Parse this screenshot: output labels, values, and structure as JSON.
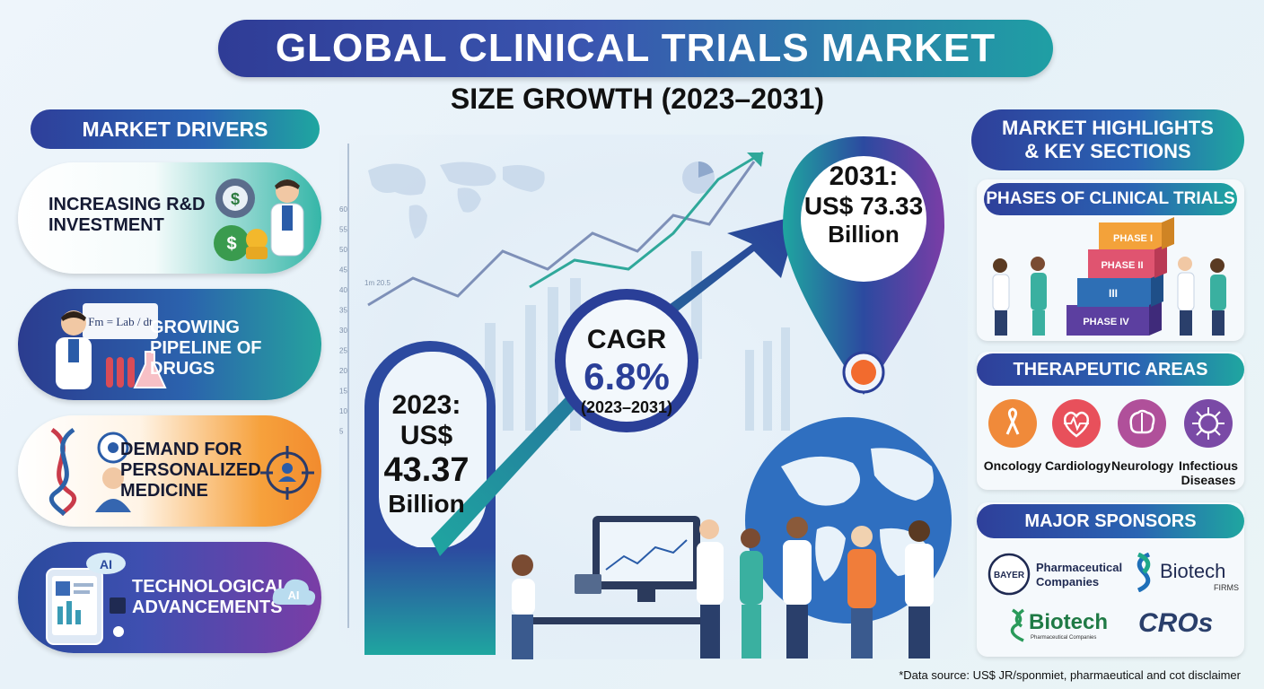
{
  "header": {
    "title": "GLOBAL CLINICAL TRIALS MARKET",
    "subtitle": "SIZE GROWTH (2023–2031)"
  },
  "drivers": {
    "heading": "MARKET DRIVERS",
    "items": [
      {
        "label_line1": "INCREASING R&D",
        "label_line2": "INVESTMENT"
      },
      {
        "label_line1": "GROWING",
        "label_line2": "PIPELINE OF DRUGS"
      },
      {
        "label_line1": "DEMAND FOR",
        "label_line2": "PERSONALIZED",
        "label_line3": "MEDICINE"
      },
      {
        "label_line1": "TECHNOLOGICAL",
        "label_line2": "ADVANCEMENTS"
      }
    ],
    "ai_badge": "AI",
    "formula_text": "Fm = Lab / dt"
  },
  "center": {
    "start": {
      "line1": "2023:",
      "line2": "US$",
      "line3": "43.37",
      "line4": "Billion"
    },
    "cagr": {
      "label": "CAGR",
      "value": "6.8%",
      "period": "(2023–2031)"
    },
    "end": {
      "line1": "2031:",
      "line2": "US$ 73.33",
      "line3": "Billion"
    },
    "axis_ticks": [
      "60",
      "55",
      "50",
      "45",
      "40",
      "35",
      "30",
      "25",
      "20",
      "15",
      "10",
      "5"
    ],
    "small_note": "1m 20.5"
  },
  "highlights": {
    "heading_line1": "MARKET HIGHLIGHTS",
    "heading_line2": "& KEY SECTIONS",
    "phases": {
      "heading": "PHASES OF CLINICAL TRIALS",
      "steps": [
        "PHASE I",
        "PHASE II",
        "III",
        "PHASE IV"
      ]
    },
    "therapeutic": {
      "heading": "THERAPEUTIC AREAS",
      "areas": [
        {
          "label": "Oncology",
          "color": "#f08a3a"
        },
        {
          "label": "Cardiology",
          "color": "#e8505b"
        },
        {
          "label": "Neurology",
          "color": "#b0509a"
        },
        {
          "label": "Infectious\nDiseases",
          "color": "#7a4aa6"
        }
      ],
      "area_line2": "Diseases",
      "area_line1": "Infectious"
    },
    "sponsors": {
      "heading": "MAJOR SPONSORS",
      "bayer": "BAYER",
      "pharma_line1": "Pharmaceutical",
      "pharma_line2": "Companies",
      "biotech1": "Biotech",
      "biotech1_sub": "FIRMS",
      "biotech2": "Biotech",
      "biotech2_sub": "Pharmaceutical Companies",
      "cros": "CROs"
    }
  },
  "footnote": "*Data source: US$ JR/sponmiet, pharmaeutical and cot disclaimer",
  "colors": {
    "navy": "#2e3f9a",
    "teal": "#1fa6a0",
    "orange": "#f28b2e",
    "purple": "#7a3da6"
  }
}
